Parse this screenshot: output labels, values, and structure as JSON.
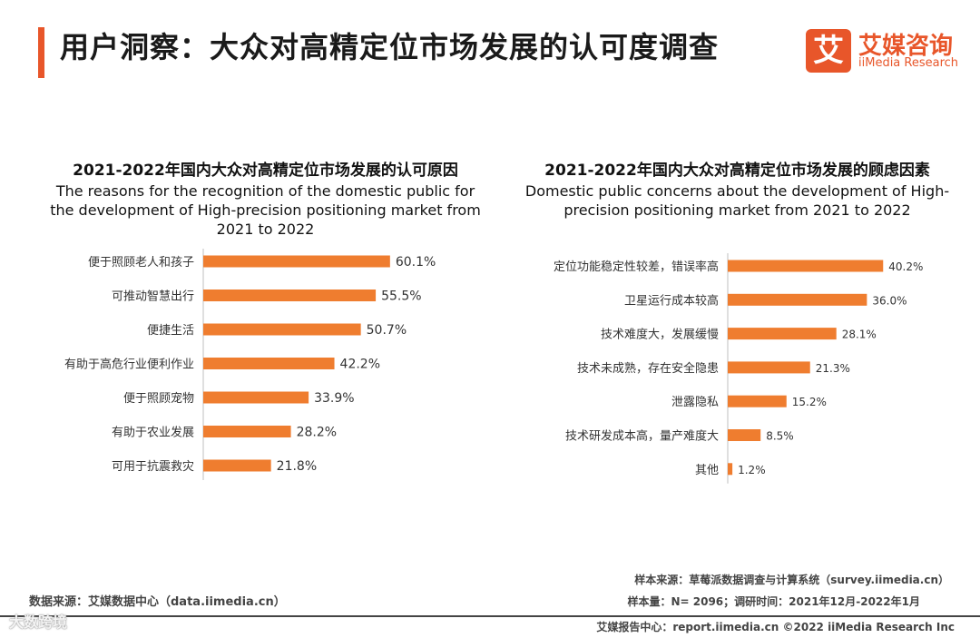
{
  "header": {
    "title": "用户洞察：大众对高精定位市场发展的认可度调查",
    "logo_mark": "艾",
    "logo_cn": "艾媒咨询",
    "logo_en": "iiMedia Research"
  },
  "colors": {
    "accent": "#e8562a",
    "bar": "#ef7d2f"
  },
  "chart_data": [
    {
      "type": "bar",
      "orientation": "horizontal",
      "title_cn": "2021-2022年国内大众对高精定位市场发展的认可原因",
      "title_en_1": "The reasons for the recognition of the domestic public for",
      "title_en_2": "the development of High-precision positioning market from",
      "title_en_3": "2021 to 2022",
      "categories": [
        "便于照顾老人和孩子",
        "可推动智慧出行",
        "便捷生活",
        "有助于高危行业便利作业",
        "便于照顾宠物",
        "有助于农业发展",
        "可用于抗震救灾"
      ],
      "values": [
        60.1,
        55.5,
        50.7,
        42.2,
        33.9,
        28.2,
        21.8
      ],
      "value_labels": [
        "60.1%",
        "55.5%",
        "50.7%",
        "42.2%",
        "33.9%",
        "28.2%",
        "21.8%"
      ],
      "xlim": [
        0,
        80
      ],
      "unit": "%"
    },
    {
      "type": "bar",
      "orientation": "horizontal",
      "title_cn": "2021-2022年国内大众对高精定位市场发展的顾虑因素",
      "title_en_1": "Domestic public concerns about the development of High-",
      "title_en_2": "precision positioning market from 2021 to 2022",
      "categories": [
        "定位功能稳定性较差，错误率高",
        "卫星运行成本较高",
        "技术难度大，发展缓慢",
        "技术未成熟，存在安全隐患",
        "泄露隐私",
        "技术研发成本高，量产难度大",
        "其他"
      ],
      "values": [
        40.2,
        36.0,
        28.1,
        21.3,
        15.2,
        8.5,
        1.2
      ],
      "value_labels": [
        "40.2%",
        "36.0%",
        "28.1%",
        "21.3%",
        "15.2%",
        "8.5%",
        "1.2%"
      ],
      "xlim": [
        0,
        50
      ],
      "unit": "%"
    }
  ],
  "footer": {
    "source_left": "数据来源：艾媒数据中心（data.iimedia.cn）",
    "sample_source": "样本来源：草莓派数据调查与计算系统（survey.iimedia.cn）",
    "sample_size": "样本量：N= 2096；调研时间：2021年12月-2022年1月",
    "report_center": "艾媒报告中心：report.iimedia.cn    ©2022  iiMedia Research  Inc",
    "watermark": "大数跨境"
  }
}
